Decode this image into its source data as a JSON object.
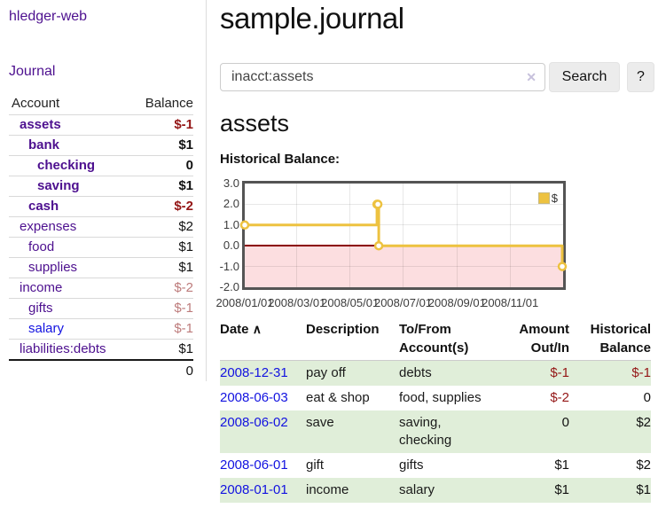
{
  "app": {
    "title": "hledger-web"
  },
  "sidebar": {
    "journal_label": "Journal",
    "accounts_table": {
      "account_header": "Account",
      "balance_header": "Balance",
      "rows": [
        {
          "account": "assets",
          "balance": "$-1",
          "indent": 1,
          "bold": true,
          "balance_style": "neg-strong"
        },
        {
          "account": "bank",
          "balance": "$1",
          "indent": 2,
          "bold": true,
          "balance_style": "strong"
        },
        {
          "account": "checking",
          "balance": "0",
          "indent": 3,
          "bold": true,
          "balance_style": "strong"
        },
        {
          "account": "saving",
          "balance": "$1",
          "indent": 3,
          "bold": true,
          "balance_style": "strong"
        },
        {
          "account": "cash",
          "balance": "$-2",
          "indent": 2,
          "bold": true,
          "balance_style": "neg-strong"
        },
        {
          "account": "expenses",
          "balance": "$2",
          "indent": 1,
          "bold": false,
          "balance_style": "plain"
        },
        {
          "account": "food",
          "balance": "$1",
          "indent": 2,
          "bold": false,
          "balance_style": "plain"
        },
        {
          "account": "supplies",
          "balance": "$1",
          "indent": 2,
          "bold": false,
          "balance_style": "plain"
        },
        {
          "account": "income",
          "balance": "$-2",
          "indent": 1,
          "bold": false,
          "balance_style": "neg-soft"
        },
        {
          "account": "gifts",
          "balance": "$-1",
          "indent": 2,
          "bold": false,
          "balance_style": "neg-soft"
        },
        {
          "account": "salary",
          "balance": "$-1",
          "indent": 2,
          "bold": false,
          "balance_style": "neg-soft",
          "link_color": "blue"
        },
        {
          "account": "liabilities:debts",
          "balance": "$1",
          "indent": 1,
          "bold": false,
          "balance_style": "plain",
          "last": true
        }
      ],
      "total": "0"
    }
  },
  "main": {
    "title": "sample.journal",
    "search": {
      "value": "inacct:assets",
      "clear_icon": "✕",
      "search_label": "Search",
      "help_label": "?"
    },
    "account_heading": "assets",
    "chart_title": "Historical Balance:"
  },
  "chart_data": {
    "type": "line",
    "step": true,
    "title": "Historical Balance",
    "x_range": [
      "2008-01-01",
      "2009-01-01"
    ],
    "ylim": [
      -2,
      3
    ],
    "yticks": [
      "3.0",
      "2.0",
      "1.0",
      "0.0",
      "-1.0",
      "-2.0"
    ],
    "xtick_labels": [
      "2008/01/01",
      "2008/03/01",
      "2008/05/01",
      "2008/07/01",
      "2008/09/01",
      "2008/11/01"
    ],
    "xtick_dates": [
      "2008-01-01",
      "2008-03-01",
      "2008-05-01",
      "2008-07-01",
      "2008-09-01",
      "2008-11-01"
    ],
    "series": [
      {
        "name": "$",
        "color": "#edc240",
        "points": [
          [
            "2008-01-01",
            1
          ],
          [
            "2008-06-01",
            2
          ],
          [
            "2008-06-02",
            2
          ],
          [
            "2008-06-03",
            0
          ],
          [
            "2008-12-31",
            -1
          ]
        ]
      }
    ],
    "grid": true,
    "legend_position": "top-right",
    "negative_fill": "#fcdee0",
    "zero_line_color": "#8b0000"
  },
  "register": {
    "headers": [
      "Date",
      "Description",
      "To/From Account(s)",
      "Amount Out/In",
      "Historical Balance"
    ],
    "sort_indicator": "∧",
    "rows": [
      {
        "date": "2008-12-31",
        "description": "pay off",
        "accounts": "debts",
        "amount": "$-1",
        "amount_neg": true,
        "balance": "$-1",
        "balance_neg": true,
        "shaded": true
      },
      {
        "date": "2008-06-03",
        "description": "eat & shop",
        "accounts": "food, supplies",
        "amount": "$-2",
        "amount_neg": true,
        "balance": "0",
        "balance_neg": false,
        "shaded": false
      },
      {
        "date": "2008-06-02",
        "description": "save",
        "accounts": "saving, checking",
        "amount": "0",
        "amount_neg": false,
        "balance": "$2",
        "balance_neg": false,
        "shaded": true
      },
      {
        "date": "2008-06-01",
        "description": "gift",
        "accounts": "gifts",
        "amount": "$1",
        "amount_neg": false,
        "balance": "$2",
        "balance_neg": false,
        "shaded": false
      },
      {
        "date": "2008-01-01",
        "description": "income",
        "accounts": "salary",
        "amount": "$1",
        "amount_neg": false,
        "balance": "$1",
        "balance_neg": false,
        "shaded": true
      }
    ]
  }
}
